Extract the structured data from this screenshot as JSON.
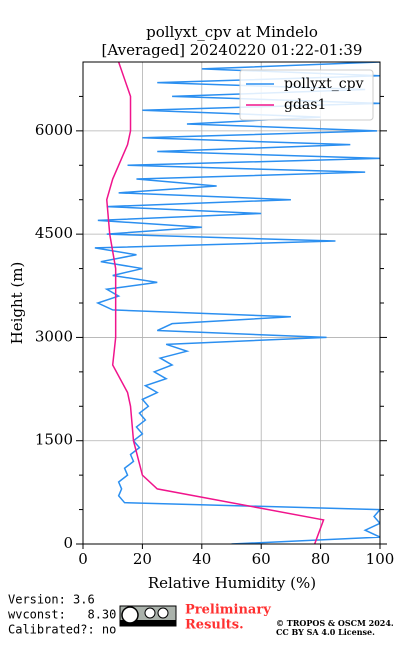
{
  "chart_data": {
    "type": "line",
    "title": "pollyxt_cpv at Mindelo",
    "subtitle": "[Averaged] 20240220 01:22-01:39",
    "xlabel": "Relative Humidity (%)",
    "ylabel": "Height (m)",
    "xlim": [
      0,
      100
    ],
    "xticks": [
      0,
      20,
      40,
      60,
      80,
      100
    ],
    "ylim": [
      0,
      7000
    ],
    "yticks": [
      0,
      1500,
      3000,
      4500,
      6000
    ],
    "yticks_minor": [
      500,
      1000,
      2000,
      2500,
      3500,
      4000,
      5000,
      5500,
      6500
    ],
    "grid": true,
    "legend": "upper right",
    "series": [
      {
        "name": "pollyxt_cpv",
        "color": "#2b8ff0",
        "x": [
          50,
          100,
          95,
          100,
          98,
          100,
          14,
          12,
          13,
          12,
          15,
          14,
          17,
          16,
          19,
          17,
          20,
          18,
          21,
          19,
          22,
          20,
          25,
          21,
          28,
          24,
          30,
          26,
          35,
          28,
          82,
          25,
          30,
          70,
          10,
          5,
          12,
          8,
          25,
          10,
          20,
          6,
          18,
          4,
          85,
          8,
          40,
          5,
          60,
          8,
          70,
          12,
          45,
          18,
          95,
          15,
          100,
          25,
          90,
          20,
          99,
          35,
          80,
          20,
          100,
          30,
          95,
          25,
          100,
          40,
          100
        ],
        "y": [
          0,
          100,
          200,
          300,
          400,
          500,
          600,
          700,
          800,
          900,
          1000,
          1100,
          1200,
          1300,
          1400,
          1500,
          1600,
          1700,
          1800,
          1900,
          2000,
          2100,
          2200,
          2300,
          2400,
          2500,
          2600,
          2700,
          2800,
          2900,
          3000,
          3100,
          3200,
          3300,
          3400,
          3500,
          3600,
          3700,
          3800,
          3900,
          4000,
          4100,
          4200,
          4300,
          4400,
          4500,
          4600,
          4700,
          4800,
          4900,
          5000,
          5100,
          5200,
          5300,
          5400,
          5500,
          5600,
          5700,
          5800,
          5900,
          6000,
          6100,
          6200,
          6300,
          6400,
          6500,
          6600,
          6700,
          6800,
          6900,
          7000
        ]
      },
      {
        "name": "gdas1",
        "color": "#f0148c",
        "x": [
          78,
          81,
          25,
          20,
          17,
          16,
          15,
          10,
          11,
          11,
          11,
          9,
          8,
          10,
          15,
          16,
          16,
          16,
          12
        ],
        "y": [
          0,
          350,
          800,
          1000,
          1500,
          2000,
          2200,
          2600,
          3000,
          3500,
          4000,
          4500,
          5000,
          5300,
          5800,
          6000,
          6200,
          6500,
          7000
        ]
      }
    ]
  },
  "footer": {
    "version": "Version: 3.6",
    "wvconst": "wvconst:   8.30",
    "calibrated": "Calibrated?: no",
    "preliminary": "Preliminary",
    "results": "Results.",
    "copyright": "© TROPOS & OSCM 2024.",
    "license": "CC BY SA 4.0 License."
  }
}
